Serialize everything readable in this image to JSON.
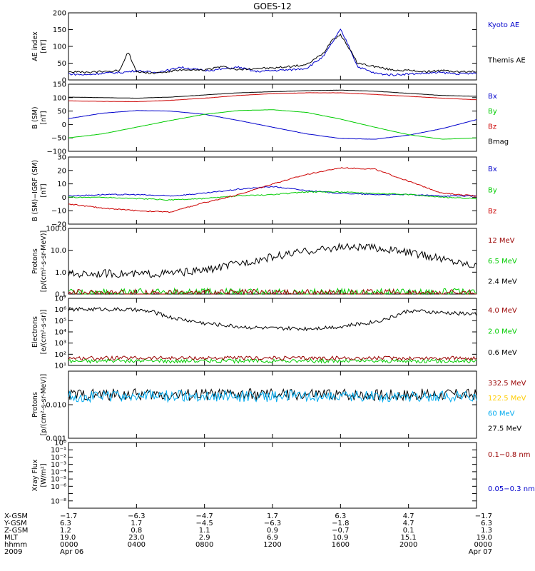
{
  "title": "GOES-12",
  "colors": {
    "black": "#000000",
    "blue": "#0000cc",
    "green": "#00cc00",
    "red": "#cc0000",
    "darkred": "#990000",
    "yellow": "#ffcc00",
    "cyan": "#00aaee"
  },
  "chart_data": [
    {
      "type": "line",
      "panel": "ae",
      "ylabel": [
        "AE index",
        "[nT]"
      ],
      "ylim": [
        0,
        200
      ],
      "yscale": "linear",
      "ticks": [
        0,
        50,
        100,
        150,
        200
      ],
      "tick_labels": [
        "0",
        "50",
        "100",
        "150",
        "200"
      ],
      "legend": [
        {
          "text": "Kyoto AE",
          "color": "#0000cc"
        },
        {
          "text": "Themis AE",
          "color": "#000000"
        }
      ],
      "series": [
        {
          "name": "Kyoto AE",
          "color": "#0000cc",
          "x": [
            0,
            1,
            2,
            3,
            3.5,
            4,
            5,
            6,
            6.5,
            7,
            8,
            9,
            10,
            11,
            12,
            13,
            14,
            15,
            15.5,
            16,
            16.5,
            17,
            18,
            19,
            20,
            21,
            22,
            23,
            24
          ],
          "y": [
            18,
            15,
            20,
            22,
            24,
            28,
            22,
            30,
            38,
            35,
            28,
            32,
            38,
            25,
            28,
            30,
            35,
            70,
            110,
            150,
            100,
            40,
            20,
            15,
            18,
            20,
            22,
            18,
            20
          ]
        },
        {
          "name": "Themis AE",
          "color": "#000000",
          "x": [
            0,
            1,
            2,
            3,
            3.5,
            4,
            5,
            6,
            6.5,
            7,
            8,
            9,
            10,
            11,
            12,
            13,
            14,
            15,
            15.5,
            16,
            16.5,
            17,
            18,
            19,
            20,
            21,
            22,
            23,
            24
          ],
          "y": [
            25,
            22,
            25,
            28,
            85,
            25,
            20,
            25,
            30,
            28,
            30,
            40,
            30,
            35,
            35,
            40,
            45,
            80,
            120,
            135,
            95,
            50,
            40,
            30,
            28,
            25,
            28,
            24,
            25
          ]
        }
      ]
    },
    {
      "type": "line",
      "panel": "bsm",
      "ylabel": [
        "B (SM)",
        "[nT]"
      ],
      "ylim": [
        -100,
        150
      ],
      "yscale": "linear",
      "ticks": [
        -100,
        -50,
        0,
        50,
        100,
        150
      ],
      "tick_labels": [
        "−100",
        "−50",
        "0",
        "50",
        "100",
        "150"
      ],
      "legend": [
        {
          "text": "Bx",
          "color": "#0000cc"
        },
        {
          "text": "By",
          "color": "#00cc00"
        },
        {
          "text": "Bz",
          "color": "#cc0000"
        },
        {
          "text": "Bmag",
          "color": "#000000"
        }
      ],
      "series": [
        {
          "name": "Bx",
          "color": "#0000cc",
          "x": [
            0,
            2,
            4,
            6,
            8,
            10,
            12,
            14,
            16,
            18,
            20,
            22,
            24
          ],
          "y": [
            22,
            42,
            52,
            50,
            38,
            15,
            -10,
            -35,
            -52,
            -55,
            -40,
            -15,
            18
          ]
        },
        {
          "name": "By",
          "color": "#00cc00",
          "x": [
            0,
            2,
            4,
            6,
            8,
            10,
            12,
            14,
            16,
            18,
            20,
            22,
            24
          ],
          "y": [
            -50,
            -35,
            -10,
            15,
            38,
            52,
            55,
            45,
            20,
            -10,
            -38,
            -55,
            -50
          ]
        },
        {
          "name": "Bz",
          "color": "#cc0000",
          "x": [
            0,
            2,
            4,
            6,
            8,
            10,
            12,
            14,
            16,
            18,
            20,
            22,
            24
          ],
          "y": [
            88,
            86,
            85,
            90,
            98,
            108,
            115,
            118,
            118,
            112,
            105,
            98,
            92
          ]
        },
        {
          "name": "Bmag",
          "color": "#000000",
          "x": [
            0,
            2,
            4,
            6,
            8,
            10,
            12,
            14,
            16,
            18,
            20,
            22,
            24
          ],
          "y": [
            102,
            100,
            98,
            102,
            110,
            118,
            122,
            126,
            128,
            124,
            116,
            108,
            105
          ]
        }
      ]
    },
    {
      "type": "line",
      "panel": "bigrf",
      "ylabel": [
        "B (SM)−IGRF (SM)",
        "[nT]"
      ],
      "ylim": [
        -20,
        30
      ],
      "yscale": "linear",
      "ticks": [
        -20,
        -10,
        0,
        10,
        20,
        30
      ],
      "tick_labels": [
        "−20",
        "−10",
        "0",
        "10",
        "20",
        "30"
      ],
      "legend": [
        {
          "text": "Bx",
          "color": "#0000cc"
        },
        {
          "text": "By",
          "color": "#00cc00"
        },
        {
          "text": "Bz",
          "color": "#cc0000"
        }
      ],
      "series": [
        {
          "name": "Bx",
          "color": "#0000cc",
          "x": [
            0,
            2,
            4,
            6,
            8,
            10,
            12,
            14,
            16,
            18,
            20,
            22,
            24
          ],
          "y": [
            1,
            2,
            2,
            1,
            3,
            6,
            8,
            5,
            3,
            2,
            2,
            1,
            1
          ]
        },
        {
          "name": "By",
          "color": "#00cc00",
          "x": [
            0,
            2,
            4,
            6,
            8,
            10,
            12,
            14,
            16,
            18,
            20,
            22,
            24
          ],
          "y": [
            0,
            0,
            -1,
            -2,
            -1,
            1,
            2,
            4,
            4,
            3,
            2,
            0,
            -1
          ]
        },
        {
          "name": "Bz",
          "color": "#cc0000",
          "x": [
            0,
            2,
            4,
            6,
            8,
            10,
            12,
            14,
            16,
            18,
            20,
            22,
            24
          ],
          "y": [
            -5,
            -8,
            -10,
            -11,
            -4,
            2,
            10,
            17,
            22,
            21,
            12,
            3,
            1
          ]
        }
      ]
    },
    {
      "type": "line",
      "panel": "protons",
      "ylabel": [
        "Protons",
        "[p/(cm²-s-sr-MeV)]"
      ],
      "ylim": [
        0.1,
        100
      ],
      "yscale": "log",
      "ticks": [
        0.1,
        1,
        10,
        100
      ],
      "tick_labels": [
        "0.1",
        "1.0",
        "10.0",
        "100.0"
      ],
      "legend": [
        {
          "text": "12 MeV",
          "color": "#990000"
        },
        {
          "text": "6.5 MeV",
          "color": "#00cc00"
        },
        {
          "text": "2.4 MeV",
          "color": "#000000"
        }
      ],
      "series": [
        {
          "name": "2.4 MeV",
          "color": "#000000",
          "x": [
            0,
            2,
            4,
            6,
            8,
            10,
            12,
            14,
            16,
            18,
            20,
            22,
            24
          ],
          "y": [
            0.8,
            0.9,
            0.8,
            0.9,
            1.2,
            2.5,
            5,
            9,
            14,
            13,
            8,
            4,
            2
          ]
        },
        {
          "name": "6.5 MeV",
          "color": "#00cc00",
          "x": [
            0,
            4,
            8,
            12,
            16,
            20,
            24
          ],
          "y": [
            0.12,
            0.12,
            0.12,
            0.12,
            0.12,
            0.12,
            0.12
          ]
        },
        {
          "name": "12 MeV",
          "color": "#990000",
          "x": [
            0,
            4,
            8,
            12,
            16,
            20,
            24
          ],
          "y": [
            0.11,
            0.11,
            0.11,
            0.11,
            0.11,
            0.11,
            0.11
          ]
        }
      ]
    },
    {
      "type": "line",
      "panel": "electrons",
      "ylabel": [
        "Electrons",
        "[e/(cm²-s-sr)]"
      ],
      "ylim": [
        10,
        10000000
      ],
      "yscale": "log",
      "ticks": [
        10,
        100,
        1000,
        10000,
        100000,
        1000000,
        10000000
      ],
      "tick_labels": [
        "10¹",
        "10²",
        "10³",
        "10⁴",
        "10⁵",
        "10⁶",
        "10⁷"
      ],
      "legend": [
        {
          "text": "4.0 MeV",
          "color": "#990000"
        },
        {
          "text": "2.0 MeV",
          "color": "#00cc00"
        },
        {
          "text": "0.6 MeV",
          "color": "#000000"
        }
      ],
      "series": [
        {
          "name": "0.6 MeV",
          "color": "#000000",
          "x": [
            0,
            2,
            4,
            5,
            6,
            8,
            10,
            12,
            14,
            16,
            18,
            19,
            20,
            22,
            24
          ],
          "y": [
            1000000,
            1100000,
            900000,
            600000,
            200000,
            60000,
            30000,
            20000,
            20000,
            30000,
            80000,
            200000,
            800000,
            500000,
            400000
          ]
        },
        {
          "name": "2.0 MeV",
          "color": "#00cc00",
          "x": [
            0,
            4,
            8,
            12,
            16,
            20,
            24
          ],
          "y": [
            25,
            25,
            25,
            25,
            25,
            25,
            25
          ]
        },
        {
          "name": "4.0 MeV",
          "color": "#990000",
          "x": [
            0,
            4,
            8,
            12,
            16,
            20,
            24
          ],
          "y": [
            45,
            45,
            45,
            45,
            45,
            45,
            45
          ]
        }
      ]
    },
    {
      "type": "line",
      "panel": "hiprotons",
      "ylabel": [
        "Protons",
        "[p/(cm²-s-sr-MeV)]"
      ],
      "ylim": [
        0.001,
        0.1
      ],
      "yscale": "log",
      "ticks": [
        0.001,
        0.01,
        0.1
      ],
      "tick_labels": [
        "0.001",
        "0.010",
        ""
      ],
      "legend": [
        {
          "text": "332.5 MeV",
          "color": "#990000"
        },
        {
          "text": "122.5 MeV",
          "color": "#ffcc00"
        },
        {
          "text": "60 MeV",
          "color": "#00aaee"
        },
        {
          "text": "27.5 MeV",
          "color": "#000000"
        }
      ],
      "series": [
        {
          "name": "27.5 MeV",
          "color": "#000000",
          "x": [
            0,
            24
          ],
          "y": [
            0.02,
            0.02
          ]
        },
        {
          "name": "60 MeV",
          "color": "#00aaee",
          "x": [
            0,
            24
          ],
          "y": [
            0.018,
            0.018
          ]
        }
      ]
    },
    {
      "type": "line",
      "panel": "xray",
      "ylabel": [
        "Xray Flux",
        "[W/m²]"
      ],
      "ylim": [
        1e-09,
        1
      ],
      "yscale": "log",
      "ticks": [
        1e-09,
        1e-08,
        1e-07,
        1e-06,
        1e-05,
        0.0001,
        0.001,
        0.01,
        0.1,
        1
      ],
      "tick_labels": [
        "",
        "10⁻⁸",
        "",
        "10⁻⁶",
        "10⁻⁵",
        "10⁻⁴",
        "10⁻³",
        "10⁻²",
        "10⁻¹",
        "10⁰"
      ],
      "legend": [
        {
          "text": "0.1−0.8 nm",
          "color": "#990000"
        },
        {
          "text": "0.05−0.3 nm",
          "color": "#0000cc"
        }
      ],
      "series": []
    }
  ],
  "footer": {
    "labels": [
      "X-GSM",
      "Y-GSM",
      "Z-GSM",
      "MLT",
      "hhmm",
      "2009"
    ],
    "columns": [
      [
        "−1.7",
        "6.3",
        "1.2",
        "19.0",
        "0000",
        "Apr 06"
      ],
      [
        "−6.3",
        "1.7",
        "0.8",
        "23.0",
        "0400",
        ""
      ],
      [
        "−4.7",
        "−4.5",
        "1.1",
        "2.9",
        "0800",
        ""
      ],
      [
        "1.7",
        "−6.3",
        "0.9",
        "6.9",
        "1200",
        ""
      ],
      [
        "6.3",
        "−1.8",
        "−0.7",
        "10.9",
        "1600",
        ""
      ],
      [
        "4.7",
        "4.7",
        "0.1",
        "15.1",
        "2000",
        ""
      ],
      [
        "−1.7",
        "6.3",
        "1.3",
        "19.0",
        "0000",
        "Apr 07"
      ]
    ]
  }
}
